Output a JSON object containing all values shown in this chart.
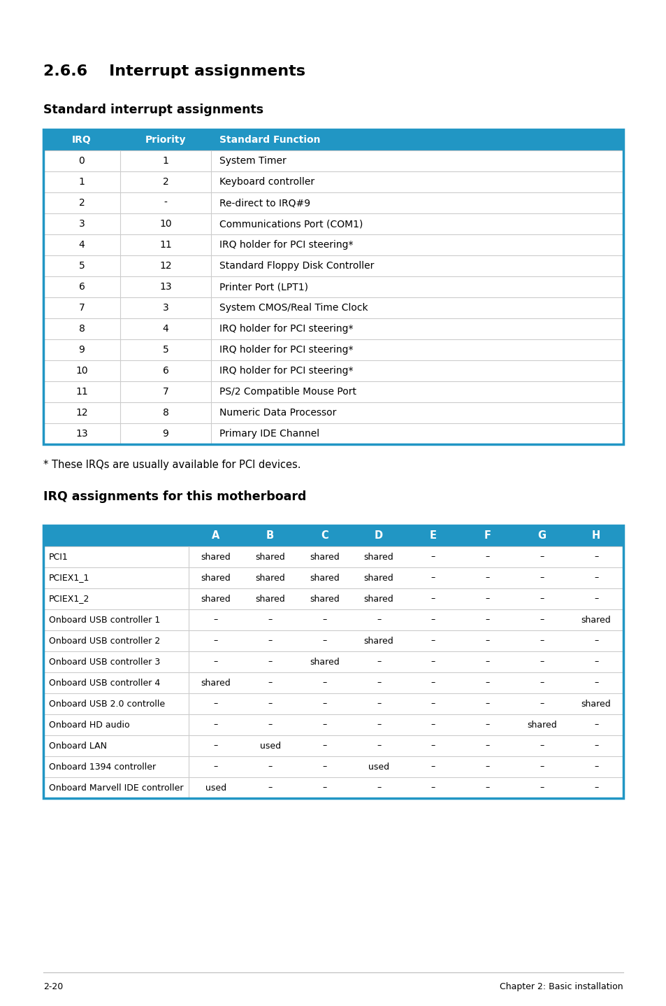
{
  "page_title": "2.6.6    Interrupt assignments",
  "section1_title": "Standard interrupt assignments",
  "section2_note": "* These IRQs are usually available for PCI devices.",
  "section2_title": "IRQ assignments for this motherboard",
  "footer_left": "2-20",
  "footer_right": "Chapter 2: Basic installation",
  "header_color": "#2196C4",
  "header_text_color": "#FFFFFF",
  "row_color": "#FFFFFF",
  "border_color": "#2196C4",
  "divider_color": "#CCCCCC",
  "table1_headers": [
    "IRQ",
    "Priority",
    "Standard Function"
  ],
  "table1_rows": [
    [
      "0",
      "1",
      "System Timer"
    ],
    [
      "1",
      "2",
      "Keyboard controller"
    ],
    [
      "2",
      "-",
      "Re-direct to IRQ#9"
    ],
    [
      "3",
      "10",
      "Communications Port (COM1)"
    ],
    [
      "4",
      "11",
      "IRQ holder for PCI steering*"
    ],
    [
      "5",
      "12",
      "Standard Floppy Disk Controller"
    ],
    [
      "6",
      "13",
      "Printer Port (LPT1)"
    ],
    [
      "7",
      "3",
      "System CMOS/Real Time Clock"
    ],
    [
      "8",
      "4",
      "IRQ holder for PCI steering*"
    ],
    [
      "9",
      "5",
      "IRQ holder for PCI steering*"
    ],
    [
      "10",
      "6",
      "IRQ holder for PCI steering*"
    ],
    [
      "11",
      "7",
      "PS/2 Compatible Mouse Port"
    ],
    [
      "12",
      "8",
      "Numeric Data Processor"
    ],
    [
      "13",
      "9",
      "Primary IDE Channel"
    ]
  ],
  "table2_headers": [
    "",
    "A",
    "B",
    "C",
    "D",
    "E",
    "F",
    "G",
    "H"
  ],
  "table2_rows": [
    [
      "PCI1",
      "shared",
      "shared",
      "shared",
      "shared",
      "–",
      "–",
      "–",
      "–"
    ],
    [
      "PCIEX1_1",
      "shared",
      "shared",
      "shared",
      "shared",
      "–",
      "–",
      "–",
      "–"
    ],
    [
      "PCIEX1_2",
      "shared",
      "shared",
      "shared",
      "shared",
      "–",
      "–",
      "–",
      "–"
    ],
    [
      "Onboard USB controller 1",
      "–",
      "–",
      "–",
      "–",
      "–",
      "–",
      "–",
      "shared"
    ],
    [
      "Onboard USB controller 2",
      "–",
      "–",
      "–",
      "shared",
      "–",
      "–",
      "–",
      "–"
    ],
    [
      "Onboard USB controller 3",
      "–",
      "–",
      "shared",
      "–",
      "–",
      "–",
      "–",
      "–"
    ],
    [
      "Onboard USB controller 4",
      "shared",
      "–",
      "–",
      "–",
      "–",
      "–",
      "–",
      "–"
    ],
    [
      "Onboard USB 2.0 controlle",
      "–",
      "–",
      "–",
      "–",
      "–",
      "–",
      "–",
      "shared"
    ],
    [
      "Onboard HD audio",
      "–",
      "–",
      "–",
      "–",
      "–",
      "–",
      "shared",
      "–"
    ],
    [
      "Onboard LAN",
      "–",
      "used",
      "–",
      "–",
      "–",
      "–",
      "–",
      "–"
    ],
    [
      "Onboard 1394 controller",
      "–",
      "–",
      "–",
      "used",
      "–",
      "–",
      "–",
      "–"
    ],
    [
      "Onboard Marvell IDE controller",
      "used",
      "–",
      "–",
      "–",
      "–",
      "–",
      "–",
      "–"
    ]
  ]
}
